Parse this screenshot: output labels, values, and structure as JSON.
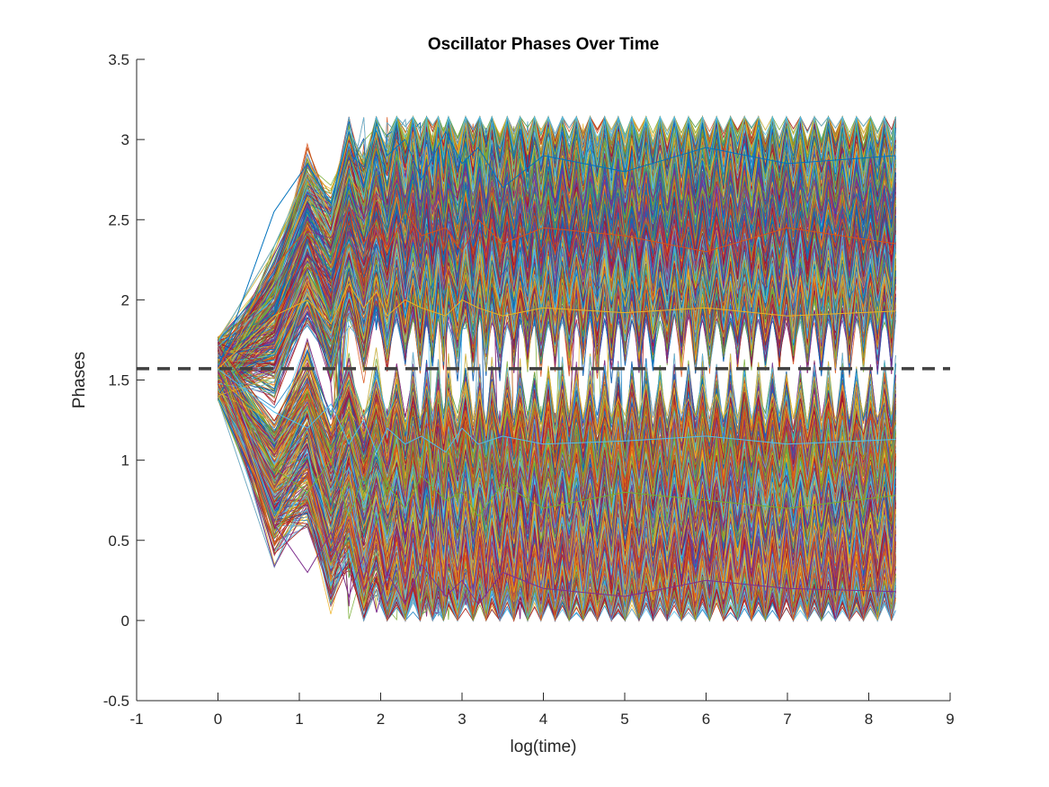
{
  "chart_data": {
    "type": "line",
    "title": "Oscillator Phases Over Time",
    "xlabel": "log(time)",
    "ylabel": "Phases",
    "xlim": [
      -1,
      9
    ],
    "ylim": [
      -0.5,
      3.5
    ],
    "x_ticks": [
      "-1",
      "0",
      "1",
      "2",
      "3",
      "4",
      "5",
      "6",
      "7",
      "8",
      "9"
    ],
    "y_ticks": [
      "-0.5",
      "0",
      "0.5",
      "1",
      "1.5",
      "2",
      "2.5",
      "3",
      "3.5"
    ],
    "grid": false,
    "legend": "none",
    "reference_line": {
      "style": "dashed",
      "y": 1.5708,
      "color": "#404040"
    },
    "x_range_of_data": [
      0,
      8.33
    ],
    "initial_phase_y": 1.5708,
    "series_count_approx": 1000,
    "series_colors": [
      "#0072BD",
      "#D95319",
      "#EDB120",
      "#7E2F8E",
      "#77AC30",
      "#4DBEEE",
      "#A2142F"
    ],
    "clusters": [
      {
        "name": "",
        "steady_state_range": [
          1.8,
          3.14
        ]
      },
      {
        "name": "",
        "steady_state_range": [
          0.0,
          1.35
        ]
      }
    ],
    "series": [
      {
        "x": [
          0,
          0.69,
          1.1,
          1.39,
          1.61,
          1.79,
          1.95,
          2.08,
          2.3,
          2.5,
          2.8,
          3.0,
          3.2,
          3.5,
          4.0,
          5.0,
          6.0,
          7.0,
          8.33
        ],
        "values": [
          1.57,
          2.55,
          2.85,
          2.6,
          3.05,
          2.7,
          3.1,
          2.9,
          3.0,
          2.75,
          3.05,
          2.85,
          2.95,
          2.7,
          2.9,
          2.8,
          2.95,
          2.85,
          2.9
        ]
      },
      {
        "x": [
          0,
          0.69,
          1.1,
          1.39,
          1.61,
          1.79,
          1.95,
          2.08,
          2.3,
          2.5,
          2.8,
          3.0,
          3.2,
          3.5,
          4.0,
          5.0,
          6.0,
          7.0,
          8.33
        ],
        "values": [
          1.57,
          2.2,
          2.45,
          2.2,
          2.6,
          2.35,
          2.5,
          2.3,
          2.55,
          2.4,
          2.45,
          2.3,
          2.5,
          2.35,
          2.45,
          2.4,
          2.3,
          2.45,
          2.35
        ]
      },
      {
        "x": [
          0,
          0.69,
          1.1,
          1.39,
          1.61,
          1.79,
          1.95,
          2.08,
          2.3,
          2.5,
          2.8,
          3.0,
          3.2,
          3.5,
          4.0,
          5.0,
          6.0,
          7.0,
          8.33
        ],
        "values": [
          1.57,
          1.9,
          2.0,
          1.85,
          2.1,
          1.95,
          2.05,
          1.9,
          2.0,
          1.95,
          1.9,
          2.0,
          1.95,
          1.9,
          1.95,
          1.92,
          1.95,
          1.9,
          1.93
        ]
      },
      {
        "x": [
          0,
          0.69,
          1.1,
          1.39,
          1.61,
          1.79,
          1.95,
          2.08,
          2.3,
          2.5,
          2.8,
          3.0,
          3.2,
          3.5,
          4.0,
          5.0,
          6.0,
          7.0,
          8.33
        ],
        "values": [
          1.57,
          0.6,
          0.3,
          0.55,
          0.15,
          0.4,
          0.05,
          0.3,
          0.1,
          0.35,
          0.15,
          0.25,
          0.1,
          0.3,
          0.2,
          0.15,
          0.25,
          0.2,
          0.18
        ]
      },
      {
        "x": [
          0,
          0.69,
          1.1,
          1.39,
          1.61,
          1.79,
          1.95,
          2.08,
          2.3,
          2.5,
          2.8,
          3.0,
          3.2,
          3.5,
          4.0,
          5.0,
          6.0,
          7.0,
          8.33
        ],
        "values": [
          1.57,
          0.95,
          0.8,
          1.0,
          0.65,
          0.9,
          0.6,
          0.85,
          0.7,
          0.9,
          0.75,
          0.8,
          0.65,
          0.85,
          0.7,
          0.8,
          0.75,
          0.7,
          0.78
        ]
      },
      {
        "x": [
          0,
          0.69,
          1.1,
          1.39,
          1.61,
          1.79,
          1.95,
          2.08,
          2.3,
          2.5,
          2.8,
          3.0,
          3.2,
          3.5,
          4.0,
          5.0,
          6.0,
          7.0,
          8.33
        ],
        "values": [
          1.57,
          1.3,
          1.2,
          1.35,
          1.1,
          1.25,
          1.05,
          1.2,
          1.1,
          1.15,
          1.05,
          1.2,
          1.1,
          1.15,
          1.1,
          1.12,
          1.15,
          1.1,
          1.13
        ]
      }
    ]
  }
}
